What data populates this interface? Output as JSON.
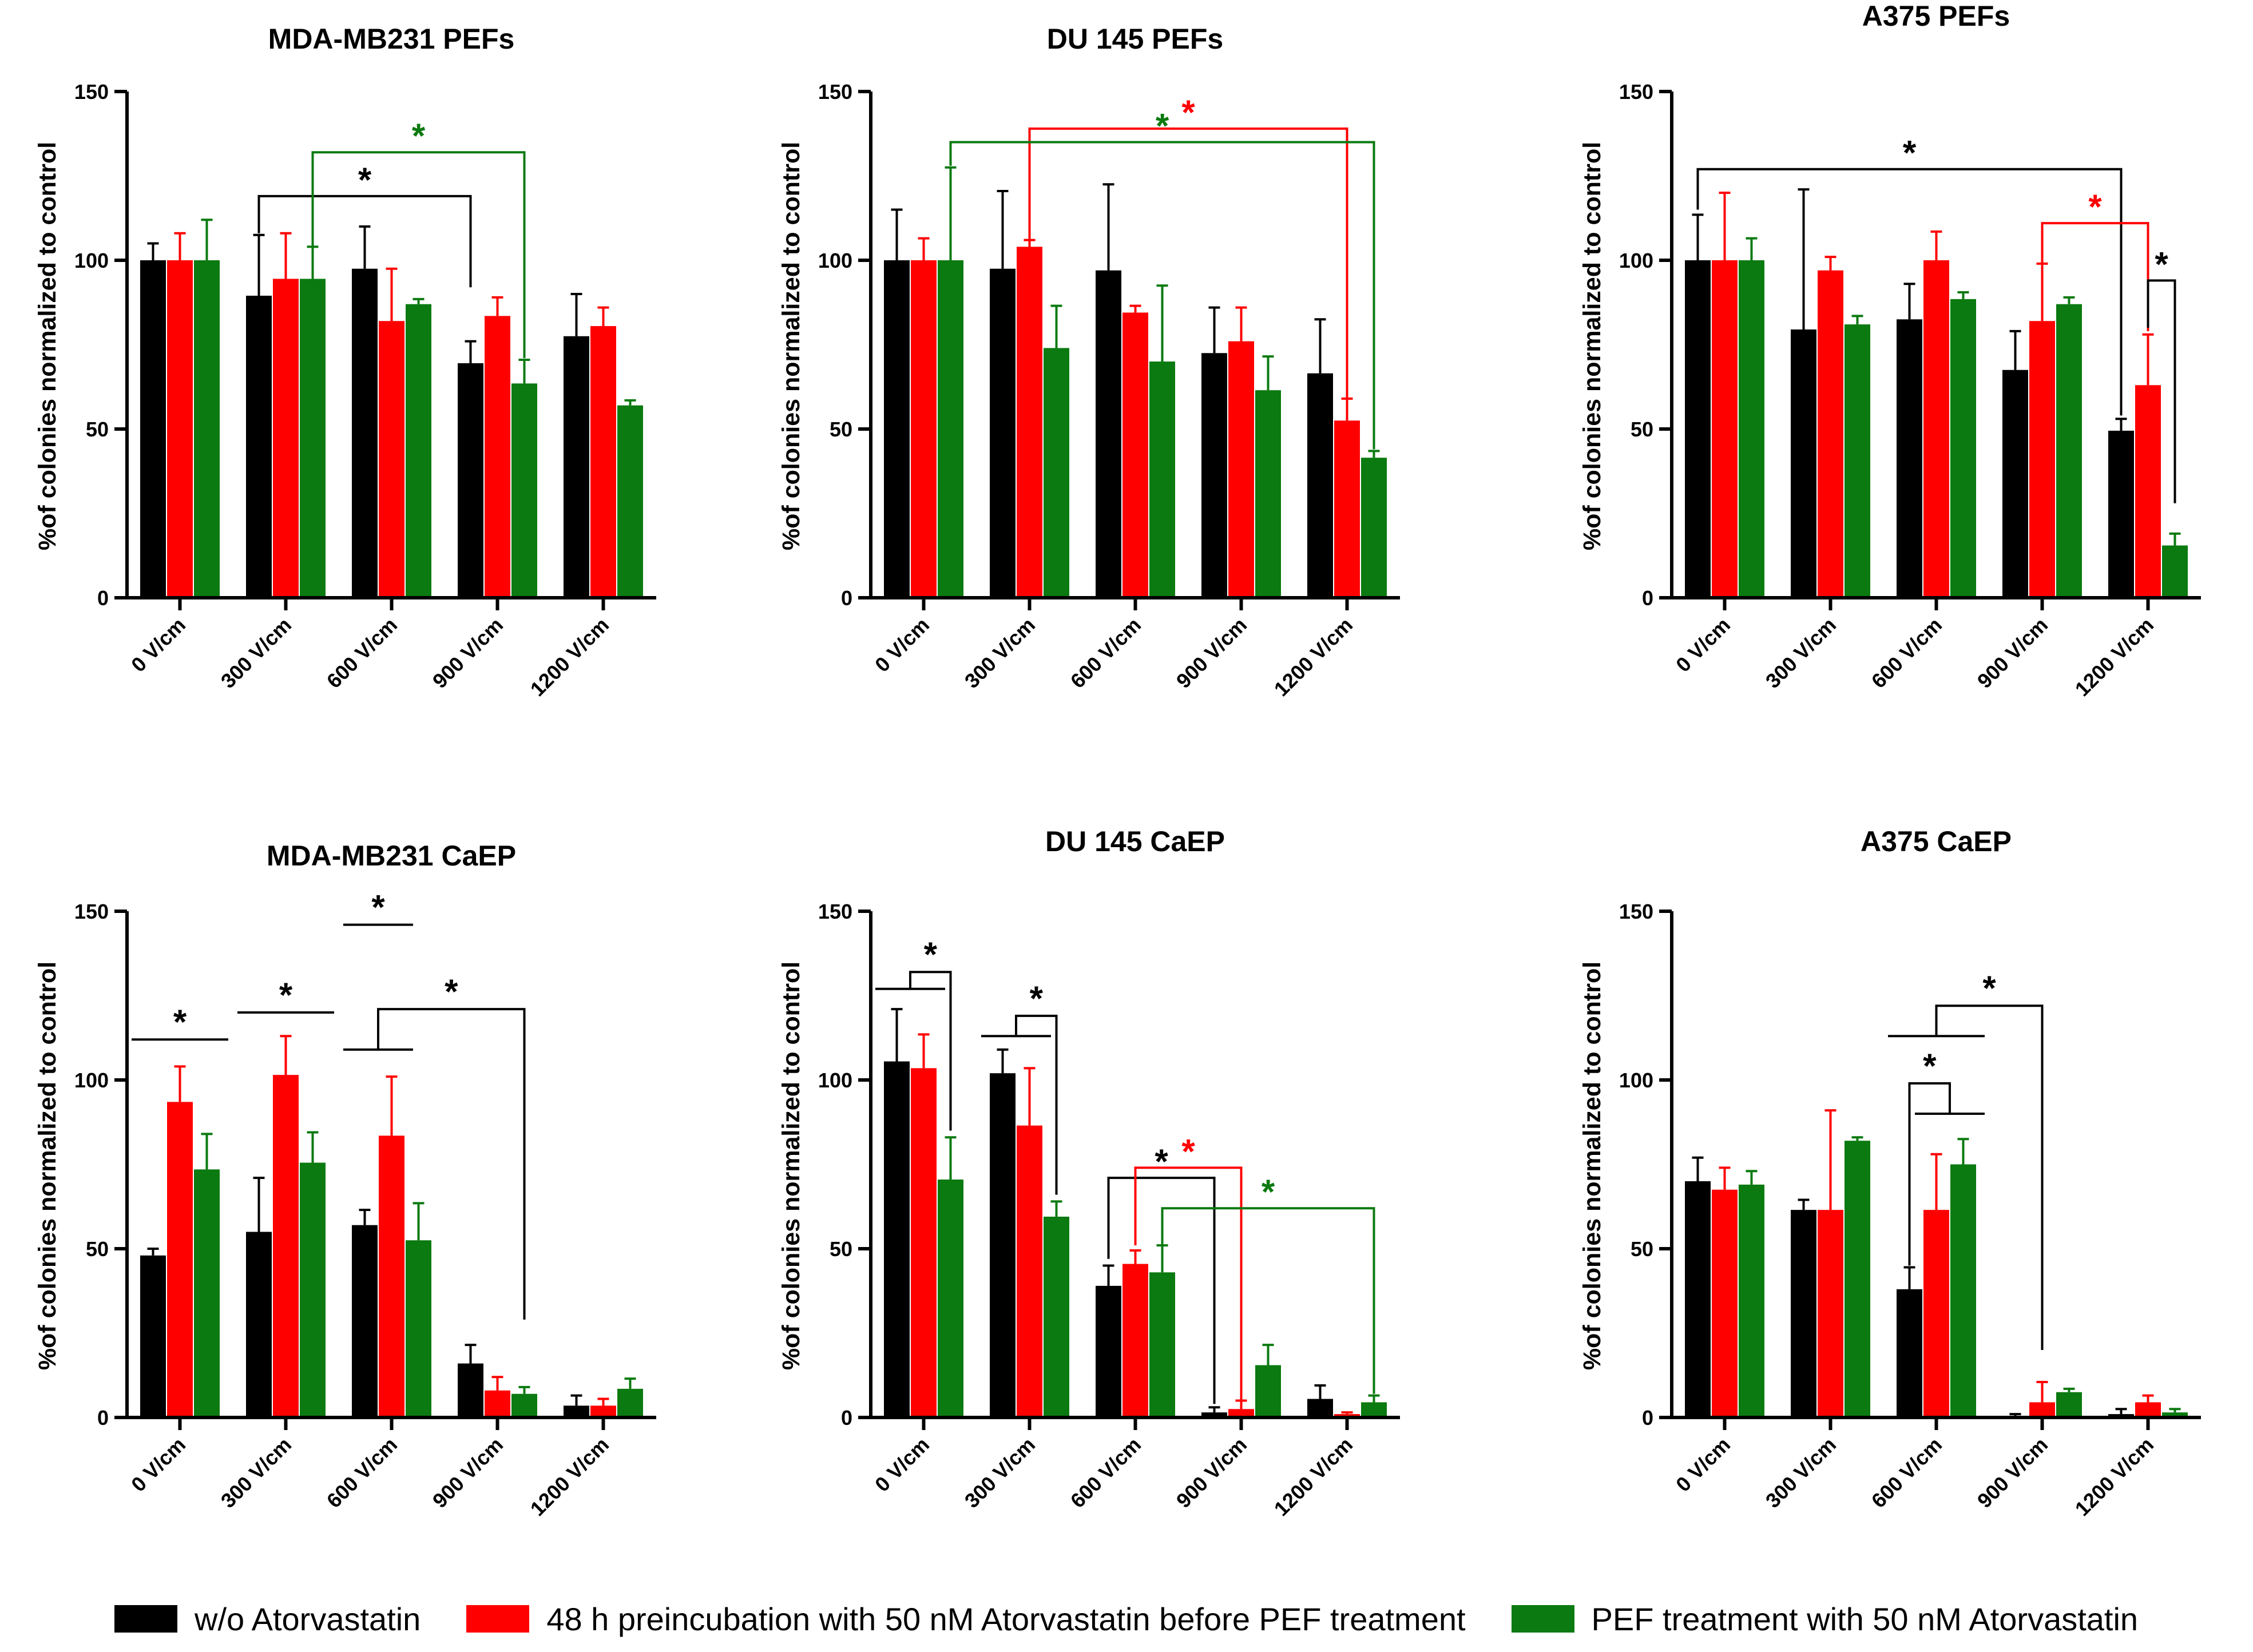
{
  "colors": {
    "wo": "#000000",
    "pre": "#ff0000",
    "with": "#0b7a10"
  },
  "legend": {
    "items": [
      {
        "key": "wo",
        "label": "w/o Atorvastatin",
        "color": "#000000"
      },
      {
        "key": "pre",
        "label": "48 h preincubation with 50 nM Atorvastatin before PEF treatment",
        "color": "#ff0000"
      },
      {
        "key": "with",
        "label": "PEF treatment with 50 nM Atorvastatin",
        "color": "#0b7a10"
      }
    ]
  },
  "chart_data": [
    {
      "type": "bar",
      "title": "MDA-MB231 PEFs",
      "ylabel": "%of colonies normalized to control",
      "ylim": [
        0,
        150
      ],
      "yticks": [
        0,
        50,
        100,
        150
      ],
      "categories": [
        "0 V/cm",
        "300 V/cm",
        "600 V/cm",
        "900 V/cm",
        "1200 V/cm"
      ],
      "series": [
        {
          "name": "w/o Atorvastatin",
          "color": "#000000",
          "values": [
            100,
            89.5,
            97.5,
            69.5,
            77.5
          ],
          "errors": [
            5,
            18,
            12.5,
            6.5,
            12.5
          ]
        },
        {
          "name": "48 h preincubation with 50 nM Atorvastatin before PEF treatment",
          "color": "#ff0000",
          "values": [
            100,
            94.5,
            82,
            83.5,
            80.5
          ],
          "errors": [
            8,
            13.5,
            15.5,
            5.5,
            5.5
          ]
        },
        {
          "name": "PEF treatment with 50 nM Atorvastatin",
          "color": "#0b7a10",
          "values": [
            100,
            94.5,
            87,
            63.5,
            57
          ],
          "errors": [
            12,
            9.5,
            1.5,
            7,
            1.5
          ]
        }
      ],
      "annotations": [
        {
          "text": "*",
          "color": "#000000",
          "shape": "bracket",
          "from": [
            1,
            0
          ],
          "to": [
            3,
            0
          ],
          "level": 119,
          "ends": [
            108,
            92
          ]
        },
        {
          "text": "*",
          "color": "#0b7a10",
          "shape": "bracket",
          "from": [
            1,
            2
          ],
          "to": [
            3,
            2
          ],
          "level": 132,
          "ends": [
            104,
            71
          ]
        }
      ]
    },
    {
      "type": "bar",
      "title": "DU 145 PEFs",
      "ylabel": "%of colonies normalized to control",
      "ylim": [
        0,
        150
      ],
      "yticks": [
        0,
        50,
        100,
        150
      ],
      "categories": [
        "0 V/cm",
        "300 V/cm",
        "600 V/cm",
        "900 V/cm",
        "1200 V/cm"
      ],
      "series": [
        {
          "name": "w/o Atorvastatin",
          "color": "#000000",
          "values": [
            100,
            97.5,
            97,
            72.5,
            66.5
          ],
          "errors": [
            15,
            23,
            25.5,
            13.5,
            16
          ]
        },
        {
          "name": "48 h preincubation with 50 nM Atorvastatin before PEF treatment",
          "color": "#ff0000",
          "values": [
            100,
            104,
            84.5,
            76,
            52.5
          ],
          "errors": [
            6.5,
            2,
            2,
            10,
            6.5
          ]
        },
        {
          "name": "PEF treatment with 50 nM Atorvastatin",
          "color": "#0b7a10",
          "values": [
            100,
            74,
            70,
            61.5,
            41.5
          ],
          "errors": [
            27.5,
            12.5,
            22.5,
            10,
            2
          ]
        }
      ],
      "annotations": [
        {
          "text": "*",
          "color": "#ff0000",
          "shape": "bracket",
          "from": [
            1,
            1
          ],
          "to": [
            4,
            1
          ],
          "level": 139,
          "ends": [
            106,
            59
          ]
        },
        {
          "text": "*",
          "color": "#0b7a10",
          "shape": "bracket",
          "from": [
            0,
            2
          ],
          "to": [
            4,
            2
          ],
          "level": 135,
          "ends": [
            128,
            44
          ]
        }
      ]
    },
    {
      "type": "bar",
      "title": "A375 PEFs",
      "ylabel": "%of colonies normalized to control",
      "ylim": [
        0,
        150
      ],
      "yticks": [
        0,
        50,
        100,
        150
      ],
      "categories": [
        "0 V/cm",
        "300 V/cm",
        "600 V/cm",
        "900 V/cm",
        "1200 V/cm"
      ],
      "series": [
        {
          "name": "w/o Atorvastatin",
          "color": "#000000",
          "values": [
            100,
            79.5,
            82.5,
            67.5,
            49.5
          ],
          "errors": [
            13.5,
            41.5,
            10.5,
            11.5,
            3.5
          ]
        },
        {
          "name": "48 h preincubation with 50 nM Atorvastatin before PEF treatment",
          "color": "#ff0000",
          "values": [
            100,
            97,
            100,
            82,
            63
          ],
          "errors": [
            20,
            4,
            8.5,
            17,
            15
          ]
        },
        {
          "name": "PEF treatment with 50 nM Atorvastatin",
          "color": "#0b7a10",
          "values": [
            100,
            81,
            88.5,
            87,
            15.5
          ],
          "errors": [
            6.5,
            2.5,
            2,
            2,
            3.5
          ]
        }
      ],
      "annotations": [
        {
          "text": "*",
          "color": "#000000",
          "shape": "bracket",
          "from": [
            0,
            0
          ],
          "to": [
            4,
            0
          ],
          "level": 127,
          "ends": [
            115,
            54
          ]
        },
        {
          "text": "*",
          "color": "#ff0000",
          "shape": "bracket",
          "from": [
            3,
            1
          ],
          "to": [
            4,
            1
          ],
          "level": 111,
          "ends": [
            99,
            79
          ]
        },
        {
          "text": "*",
          "color": "#000000",
          "shape": "bracket",
          "from": [
            4,
            1
          ],
          "to": [
            4,
            2
          ],
          "level": 94,
          "ends": [
            80,
            28
          ]
        }
      ]
    },
    {
      "type": "bar",
      "title": "MDA-MB231 CaEP",
      "ylabel": "%of colonies normalized to control",
      "ylim": [
        0,
        150
      ],
      "yticks": [
        0,
        50,
        100,
        150
      ],
      "categories": [
        "0 V/cm",
        "300 V/cm",
        "600 V/cm",
        "900 V/cm",
        "1200 V/cm"
      ],
      "series": [
        {
          "name": "w/o Atorvastatin",
          "color": "#000000",
          "values": [
            48,
            55,
            57,
            16,
            3.5
          ],
          "errors": [
            2,
            16,
            4.5,
            5.5,
            3
          ]
        },
        {
          "name": "48 h preincubation with 50 nM Atorvastatin before PEF treatment",
          "color": "#ff0000",
          "values": [
            93.5,
            101.5,
            83.5,
            8,
            3.5
          ],
          "errors": [
            10.5,
            11.5,
            17.5,
            4,
            2
          ]
        },
        {
          "name": "PEF treatment with 50 nM Atorvastatin",
          "color": "#0b7a10",
          "values": [
            73.5,
            75.5,
            52.5,
            7,
            8.5
          ],
          "errors": [
            10.5,
            9,
            11,
            2,
            3
          ]
        }
      ],
      "annotations": [
        {
          "text": "*",
          "color": "#000000",
          "shape": "line",
          "from": [
            0,
            0
          ],
          "to": [
            0,
            2
          ],
          "level": 112
        },
        {
          "text": "*",
          "color": "#000000",
          "shape": "line",
          "from": [
            1,
            0
          ],
          "to": [
            1,
            2
          ],
          "level": 120
        },
        {
          "text": "*",
          "color": "#000000",
          "shape": "line",
          "from": [
            2,
            0
          ],
          "to": [
            2,
            1
          ],
          "level": 146
        },
        {
          "text": "*",
          "color": "#000000",
          "shape": "fork",
          "bar1": [
            2,
            0
          ],
          "bar2": [
            2,
            1
          ],
          "bar3": [
            3,
            2
          ],
          "level": 121,
          "inner": 109,
          "drop": 29
        }
      ]
    },
    {
      "type": "bar",
      "title": "DU 145 CaEP",
      "ylabel": "%of colonies normalized to control",
      "ylim": [
        0,
        150
      ],
      "yticks": [
        0,
        50,
        100,
        150
      ],
      "categories": [
        "0 V/cm",
        "300 V/cm",
        "600 V/cm",
        "900 V/cm",
        "1200 V/cm"
      ],
      "series": [
        {
          "name": "w/o Atorvastatin",
          "color": "#000000",
          "values": [
            105.5,
            102,
            39,
            1.5,
            5.5
          ],
          "errors": [
            15.5,
            7,
            6,
            1.5,
            4
          ]
        },
        {
          "name": "48 h preincubation with 50 nM Atorvastatin before PEF treatment",
          "color": "#ff0000",
          "values": [
            103.5,
            86.5,
            45.5,
            2.5,
            1
          ],
          "errors": [
            10,
            17,
            4,
            2.5,
            0.5
          ]
        },
        {
          "name": "PEF treatment with 50 nM Atorvastatin",
          "color": "#0b7a10",
          "values": [
            70.5,
            59.5,
            43,
            15.5,
            4.5
          ],
          "errors": [
            12.5,
            4.5,
            8,
            6,
            2
          ]
        }
      ],
      "annotations": [
        {
          "text": "*",
          "color": "#000000",
          "shape": "fork",
          "bar1": [
            0,
            0
          ],
          "bar2": [
            0,
            1
          ],
          "bar3": [
            0,
            2
          ],
          "level": 132,
          "inner": 127,
          "drop": 85
        },
        {
          "text": "*",
          "color": "#000000",
          "shape": "fork",
          "bar1": [
            1,
            0
          ],
          "bar2": [
            1,
            1
          ],
          "bar3": [
            1,
            2
          ],
          "level": 119,
          "inner": 113,
          "drop": 66
        },
        {
          "text": "*",
          "color": "#000000",
          "shape": "bracket",
          "from": [
            2,
            0
          ],
          "to": [
            3,
            0
          ],
          "level": 71,
          "ends": [
            47,
            4
          ]
        },
        {
          "text": "*",
          "color": "#ff0000",
          "shape": "bracket",
          "from": [
            2,
            1
          ],
          "to": [
            3,
            1
          ],
          "level": 74,
          "ends": [
            51,
            5
          ]
        },
        {
          "text": "*",
          "color": "#0b7a10",
          "shape": "bracket",
          "from": [
            2,
            2
          ],
          "to": [
            4,
            2
          ],
          "level": 62,
          "ends": [
            51,
            7
          ]
        }
      ]
    },
    {
      "type": "bar",
      "title": "A375 CaEP",
      "ylabel": "%of colonies normalized to control",
      "ylim": [
        0,
        150
      ],
      "yticks": [
        0,
        50,
        100,
        150
      ],
      "categories": [
        "0 V/cm",
        "300 V/cm",
        "600 V/cm",
        "900 V/cm",
        "1200 V/cm"
      ],
      "series": [
        {
          "name": "w/o Atorvastatin",
          "color": "#000000",
          "values": [
            70,
            61.5,
            38,
            0.5,
            1
          ],
          "errors": [
            7,
            3,
            6.5,
            0.5,
            1.5
          ]
        },
        {
          "name": "48 h preincubation with 50 nM Atorvastatin before PEF treatment",
          "color": "#ff0000",
          "values": [
            67.5,
            61.5,
            61.5,
            4.5,
            4.5
          ],
          "errors": [
            6.5,
            29.5,
            16.5,
            6,
            2
          ]
        },
        {
          "name": "PEF treatment with 50 nM Atorvastatin",
          "color": "#0b7a10",
          "values": [
            69,
            82,
            75,
            7.5,
            1.5
          ],
          "errors": [
            4,
            1,
            7.5,
            1,
            1
          ]
        }
      ],
      "annotations": [
        {
          "text": "*",
          "color": "#000000",
          "shape": "fork",
          "bar1": [
            2,
            1
          ],
          "bar2": [
            2,
            2
          ],
          "bar3": [
            2,
            0
          ],
          "level": 99,
          "inner": 90,
          "drop": 45,
          "rev": true
        },
        {
          "text": "*",
          "color": "#000000",
          "shape": "fork",
          "bar1": [
            2,
            0
          ],
          "bar2": [
            2,
            2
          ],
          "bar3": [
            3,
            1
          ],
          "level": 122,
          "inner": 113,
          "drop": 20
        }
      ]
    }
  ]
}
